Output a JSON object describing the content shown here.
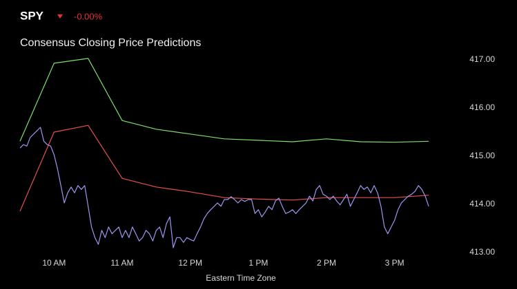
{
  "header": {
    "symbol": "SPY",
    "change": "-0.00%"
  },
  "chart_data": {
    "type": "line",
    "title": "Consensus Closing Price Predictions",
    "xlabel": "Eastern Time Zone",
    "xlim": [
      570,
      930
    ],
    "xticks": [
      {
        "value": 600,
        "label": "10 AM"
      },
      {
        "value": 660,
        "label": "11 AM"
      },
      {
        "value": 720,
        "label": "12 PM"
      },
      {
        "value": 780,
        "label": "1 PM"
      },
      {
        "value": 840,
        "label": "2 PM"
      },
      {
        "value": 900,
        "label": "3 PM"
      }
    ],
    "ylim": [
      413,
      417
    ],
    "yticks": [
      {
        "value": 413,
        "label": "413.00"
      },
      {
        "value": 414,
        "label": "414.00"
      },
      {
        "value": 415,
        "label": "415.00"
      },
      {
        "value": 416,
        "label": "416.00"
      },
      {
        "value": 417,
        "label": "417.00"
      }
    ],
    "grid": false,
    "series": [
      {
        "color": "#7ee06a",
        "x": [
          570,
          600,
          630,
          660,
          690,
          720,
          750,
          780,
          810,
          840,
          870,
          900,
          930
        ],
        "values": [
          415.31,
          416.93,
          417.03,
          415.74,
          415.56,
          415.46,
          415.36,
          415.33,
          415.3,
          415.36,
          415.3,
          415.29,
          415.31
        ]
      },
      {
        "color": "#e5524f",
        "x": [
          570,
          600,
          630,
          660,
          690,
          720,
          750,
          780,
          810,
          840,
          870,
          900,
          930
        ],
        "values": [
          413.86,
          415.5,
          415.64,
          414.54,
          414.36,
          414.26,
          414.14,
          414.11,
          414.09,
          414.14,
          414.14,
          414.14,
          414.19
        ]
      },
      {
        "color": "#9c97f0",
        "x": [
          570,
          573,
          576,
          579,
          582,
          585,
          588,
          591,
          594,
          597,
          600,
          603,
          606,
          609,
          612,
          615,
          618,
          621,
          624,
          627,
          630,
          633,
          636,
          639,
          642,
          645,
          648,
          651,
          654,
          657,
          660,
          663,
          666,
          669,
          672,
          675,
          678,
          681,
          684,
          687,
          690,
          693,
          696,
          699,
          702,
          705,
          708,
          711,
          714,
          717,
          720,
          723,
          726,
          729,
          732,
          735,
          738,
          741,
          744,
          747,
          750,
          753,
          756,
          759,
          762,
          765,
          768,
          771,
          774,
          777,
          780,
          783,
          786,
          789,
          792,
          795,
          798,
          801,
          804,
          807,
          810,
          813,
          816,
          819,
          822,
          825,
          828,
          831,
          834,
          837,
          840,
          843,
          846,
          849,
          852,
          855,
          858,
          861,
          864,
          867,
          870,
          873,
          876,
          879,
          882,
          885,
          888,
          891,
          894,
          897,
          900,
          903,
          906,
          909,
          912,
          915,
          918,
          921,
          924,
          927,
          930
        ],
        "values": [
          415.17,
          415.24,
          415.21,
          415.39,
          415.46,
          415.53,
          415.6,
          415.31,
          415.24,
          415.21,
          415.03,
          414.74,
          414.39,
          414.03,
          414.24,
          414.36,
          414.24,
          414.39,
          414.31,
          414.39,
          413.96,
          413.53,
          413.31,
          413.17,
          413.46,
          413.31,
          413.53,
          413.39,
          413.46,
          413.53,
          413.31,
          413.46,
          413.31,
          413.53,
          413.39,
          413.24,
          413.31,
          413.46,
          413.39,
          413.24,
          413.46,
          413.53,
          413.31,
          413.6,
          413.74,
          413.1,
          413.31,
          413.31,
          413.21,
          413.31,
          413.27,
          413.24,
          413.39,
          413.53,
          413.7,
          413.81,
          413.89,
          413.96,
          414.03,
          413.96,
          414.1,
          414.1,
          414.16,
          414.1,
          414.03,
          414.1,
          414.06,
          414.1,
          414.1,
          413.81,
          413.89,
          413.74,
          413.84,
          413.96,
          413.89,
          414.07,
          414.13,
          413.96,
          413.81,
          413.84,
          413.89,
          413.81,
          413.89,
          413.96,
          414.03,
          414.17,
          414.07,
          414.31,
          414.39,
          414.21,
          414.17,
          414.1,
          414.17,
          414.07,
          413.99,
          414.1,
          414.21,
          413.96,
          414.1,
          414.24,
          414.39,
          414.31,
          414.36,
          414.24,
          414.39,
          414.24,
          413.96,
          413.53,
          413.39,
          413.53,
          413.67,
          413.89,
          414.03,
          414.1,
          414.17,
          414.21,
          414.27,
          414.39,
          414.31,
          414.17,
          413.96
        ]
      }
    ]
  }
}
